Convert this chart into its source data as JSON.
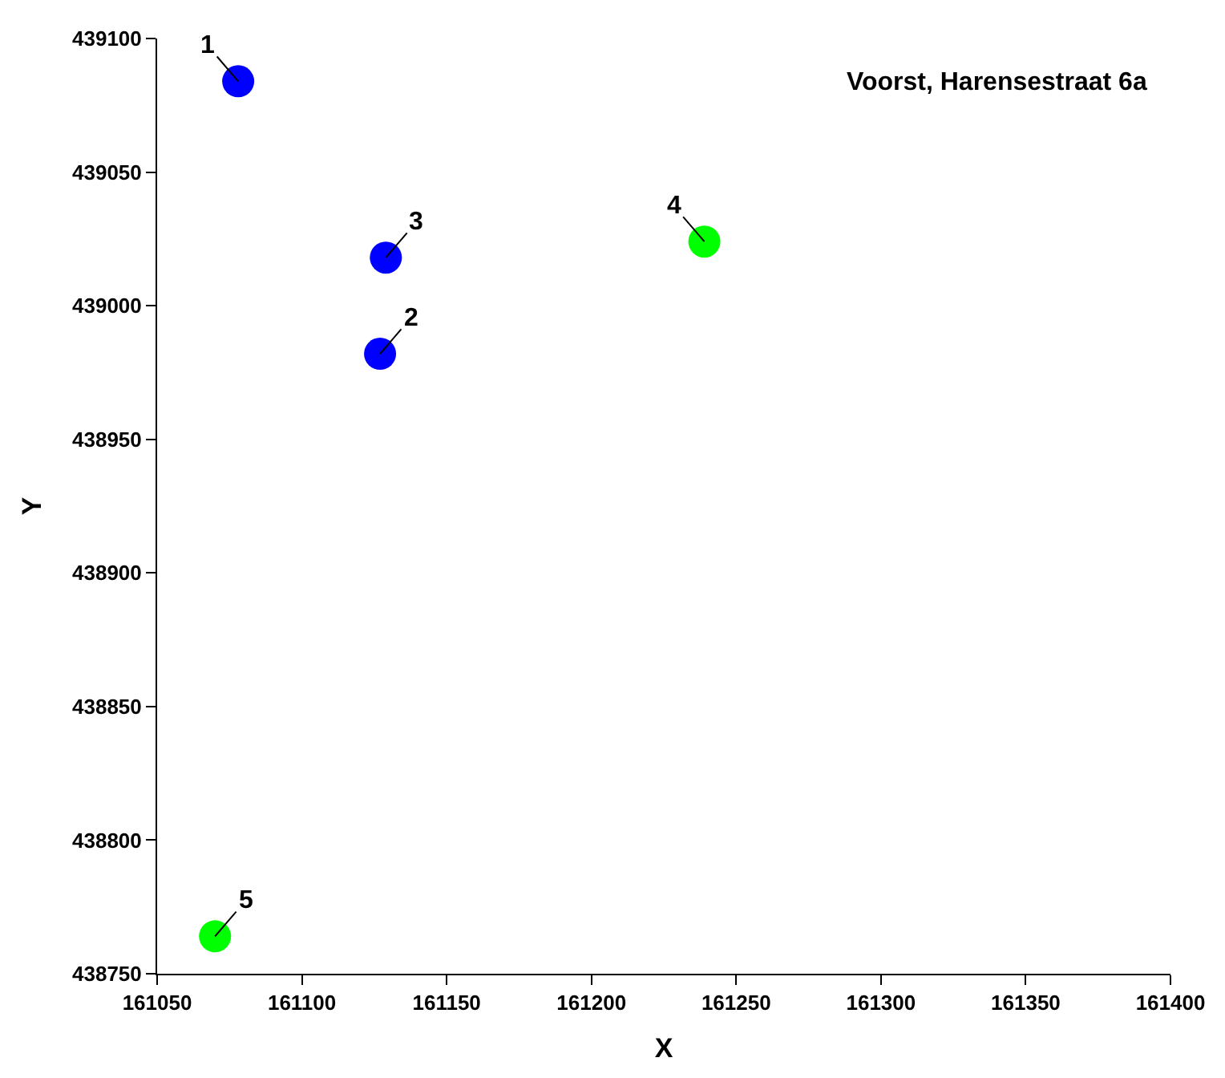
{
  "chart_data": {
    "type": "scatter",
    "title": "Voorst, Harensestraat 6a",
    "xlabel": "X",
    "ylabel": "Y",
    "x": [
      161078,
      161127,
      161129,
      161239,
      161070
    ],
    "values": [
      439084,
      438982,
      439018,
      439024,
      438764
    ],
    "colors": [
      "#0000ff",
      "#0000ff",
      "#0000ff",
      "#00ff00",
      "#00ff00"
    ],
    "annotations": [
      {
        "text": "1",
        "x": 161078,
        "y": 439084
      },
      {
        "text": "2",
        "x": 161127,
        "y": 438982
      },
      {
        "text": "3",
        "x": 161129,
        "y": 439018
      },
      {
        "text": "4",
        "x": 161239,
        "y": 439024
      },
      {
        "text": "5",
        "x": 161070,
        "y": 438764
      }
    ],
    "xlim": [
      161050,
      161400
    ],
    "xticks": [
      161050,
      161100,
      161150,
      161200,
      161250,
      161300,
      161350,
      161400
    ],
    "ylim": [
      438750,
      439100
    ],
    "yticks": [
      438750,
      438800,
      438850,
      438900,
      438950,
      439000,
      439050,
      439100
    ],
    "marker": "circle"
  }
}
